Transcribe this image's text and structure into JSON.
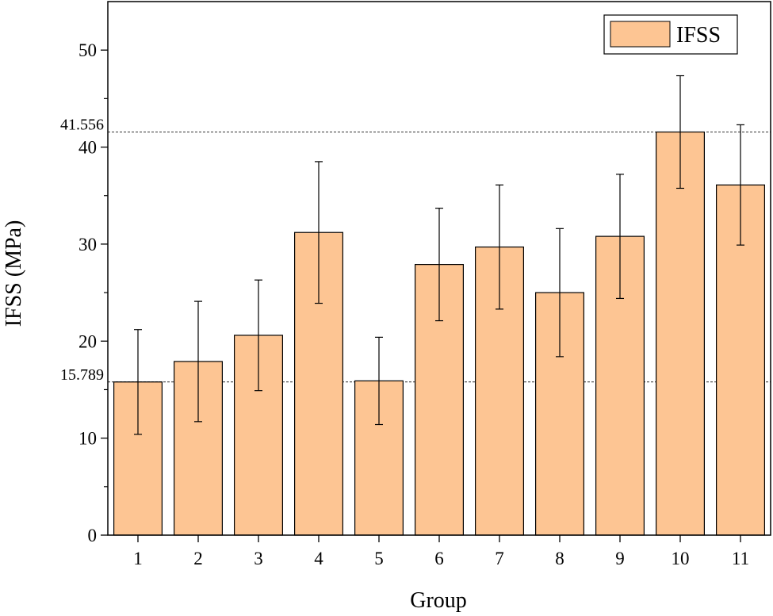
{
  "chart_data": {
    "type": "bar",
    "title": "",
    "xlabel": "Group",
    "ylabel": "IFSS (MPa)",
    "ylim": [
      0,
      55
    ],
    "yticks": [
      0,
      10,
      20,
      30,
      40,
      50
    ],
    "categories": [
      "1",
      "2",
      "3",
      "4",
      "5",
      "6",
      "7",
      "8",
      "9",
      "10",
      "11"
    ],
    "series": [
      {
        "name": "IFSS",
        "color": "#FDC593",
        "edge_color": "#000000",
        "values": [
          15.789,
          17.9,
          20.6,
          31.2,
          15.9,
          27.9,
          29.7,
          25.0,
          30.8,
          41.556,
          36.1
        ],
        "errors": [
          5.4,
          6.2,
          5.7,
          7.3,
          4.5,
          5.8,
          6.4,
          6.6,
          6.4,
          5.8,
          6.2
        ]
      }
    ],
    "reference_lines": [
      {
        "value": 41.556,
        "label": "41.556"
      },
      {
        "value": 15.789,
        "label": "15.789"
      }
    ],
    "legend": {
      "label": "IFSS",
      "position": "top-right"
    },
    "grid": false
  }
}
